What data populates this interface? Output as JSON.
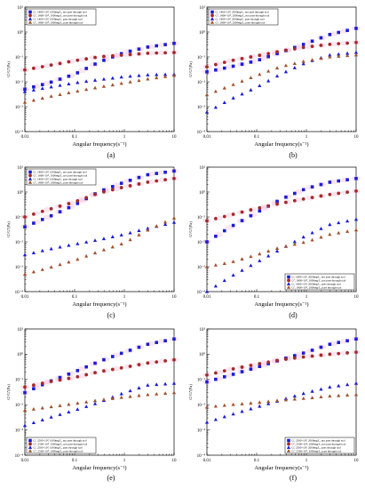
{
  "colors": {
    "blue_square": "#1c1cd6",
    "red_circle": "#a52a2a",
    "blue_triangle": "#1c1cd6",
    "red_triangle": "#a0522d",
    "band": "#f2b8d8"
  },
  "chart_data": [
    {
      "type": "scatter",
      "panel_label": "(a)",
      "xlabel": "Angular frequency(s⁻¹)",
      "ylabel": "G'/G''(Pa)",
      "xscale": "log",
      "yscale": "log",
      "xlim": [
        0.01,
        10
      ],
      "ylim": [
        0.0001,
        10
      ],
      "x_ticks": [
        "0.01",
        "0.1",
        "1",
        "10"
      ],
      "y_ticks": [
        "10⁻⁴",
        "10⁻³",
        "10⁻²",
        "10⁻¹",
        "10⁰",
        "10¹"
      ],
      "legend_position": "top-left",
      "series": [
        {
          "name": "G', 1800×10⁴, 1000mg/L, not pass through tool",
          "marker": "square",
          "x": [
            0.01,
            0.03,
            0.1,
            0.3,
            1,
            3,
            10
          ],
          "y": [
            0.005,
            0.009,
            0.02,
            0.06,
            0.15,
            0.25,
            0.35
          ]
        },
        {
          "name": "G'', 1800×10⁴, 1000mg/L, not pass through tool",
          "marker": "circle",
          "x": [
            0.01,
            0.03,
            0.1,
            0.3,
            1,
            3,
            10
          ],
          "y": [
            0.03,
            0.045,
            0.07,
            0.1,
            0.12,
            0.14,
            0.15
          ]
        },
        {
          "name": "G', 1800×10⁴, 1000mg/L, pass through tool",
          "marker": "triangle",
          "x": [
            0.01,
            0.03,
            0.1,
            0.3,
            1,
            3,
            10
          ],
          "y": [
            0.004,
            0.006,
            0.009,
            0.012,
            0.016,
            0.019,
            0.02
          ]
        },
        {
          "name": "G'', 1800×10⁴, 1000mg/L, pass through tool",
          "marker": "triangle-red",
          "x": [
            0.01,
            0.03,
            0.1,
            0.3,
            1,
            3,
            10
          ],
          "y": [
            0.0015,
            0.0025,
            0.004,
            0.006,
            0.009,
            0.013,
            0.018
          ]
        }
      ]
    },
    {
      "type": "scatter",
      "panel_label": "(b)",
      "xlabel": "Angular frequency(s⁻¹)",
      "ylabel": "G'/G''(Pa)",
      "xscale": "log",
      "yscale": "log",
      "xlim": [
        0.01,
        10
      ],
      "ylim": [
        0.0001,
        10
      ],
      "x_ticks": [
        "0.01",
        "0.1",
        "1",
        "10"
      ],
      "y_ticks": [
        "10⁻⁴",
        "10⁻³",
        "10⁻²",
        "10⁻¹",
        "10⁰",
        "10¹"
      ],
      "legend_position": "top-left",
      "series": [
        {
          "name": "G', 1800×10⁴, 2000mg/L, not pass through tool",
          "marker": "square",
          "x": [
            0.01,
            0.03,
            0.1,
            0.3,
            1,
            3,
            10
          ],
          "y": [
            0.025,
            0.04,
            0.07,
            0.15,
            0.35,
            0.8,
            1.4
          ]
        },
        {
          "name": "G'', 1800×10⁴, 2000mg/L, not pass through tool",
          "marker": "circle",
          "x": [
            0.01,
            0.03,
            0.1,
            0.3,
            1,
            3,
            10
          ],
          "y": [
            0.04,
            0.07,
            0.11,
            0.17,
            0.25,
            0.32,
            0.38
          ]
        },
        {
          "name": "G', 1800×10⁴, 2000mg/L, pass through tool",
          "marker": "triangle",
          "x": [
            0.01,
            0.03,
            0.1,
            0.3,
            1,
            3,
            10
          ],
          "y": [
            0.0006,
            0.002,
            0.006,
            0.02,
            0.06,
            0.12,
            0.15
          ]
        },
        {
          "name": "G'', 1800×10⁴, 2000mg/L, pass through tool",
          "marker": "triangle-red",
          "x": [
            0.01,
            0.03,
            0.1,
            0.3,
            1,
            3,
            10
          ],
          "y": [
            0.003,
            0.007,
            0.018,
            0.04,
            0.07,
            0.1,
            0.12
          ]
        }
      ]
    },
    {
      "type": "scatter",
      "panel_label": "(c)",
      "xlabel": "Angular frequency(s⁻¹)",
      "ylabel": "G'/G''(Pa)",
      "xscale": "log",
      "yscale": "log",
      "xlim": [
        0.01,
        10
      ],
      "ylim": [
        0.0001,
        10
      ],
      "x_ticks": [
        "0.01",
        "0.1",
        "1",
        "10"
      ],
      "y_ticks": [
        "10⁻⁴",
        "10⁻³",
        "10⁻²",
        "10⁻¹",
        "10⁰",
        "10¹"
      ],
      "legend_position": "top-left",
      "series": [
        {
          "name": "G', 1800×10⁴, 1000mg/L, not pass through tool",
          "marker": "square",
          "x": [
            0.01,
            0.03,
            0.1,
            0.3,
            1,
            3,
            10
          ],
          "y": [
            0.04,
            0.1,
            0.3,
            1,
            2.5,
            5,
            7
          ]
        },
        {
          "name": "G'', 1800×10⁴, 1000mg/L, not pass through tool",
          "marker": "circle",
          "x": [
            0.01,
            0.03,
            0.1,
            0.3,
            1,
            3,
            10
          ],
          "y": [
            0.1,
            0.2,
            0.4,
            0.9,
            1.6,
            2.5,
            3.5
          ]
        },
        {
          "name": "G', 1800×10⁴, 1000mg/L, pass through tool",
          "marker": "triangle",
          "x": [
            0.01,
            0.03,
            0.1,
            0.3,
            1,
            3,
            10
          ],
          "y": [
            0.003,
            0.005,
            0.008,
            0.012,
            0.02,
            0.035,
            0.06
          ]
        },
        {
          "name": "G'', 1800×10⁴, 1000mg/L, pass through tool",
          "marker": "triangle-red",
          "x": [
            0.01,
            0.03,
            0.1,
            0.3,
            1,
            3,
            10
          ],
          "y": [
            0.0005,
            0.0009,
            0.0018,
            0.004,
            0.009,
            0.03,
            0.09
          ]
        }
      ]
    },
    {
      "type": "scatter",
      "panel_label": "(d)",
      "xlabel": "Angular frequency(s⁻¹)",
      "ylabel": "G'/G''(Pa)",
      "xscale": "log",
      "yscale": "log",
      "xlim": [
        0.01,
        10
      ],
      "ylim": [
        0.0001,
        10
      ],
      "x_ticks": [
        "0.01",
        "0.1",
        "1",
        "10"
      ],
      "y_ticks": [
        "10⁻⁴",
        "10⁻³",
        "10⁻²",
        "10⁻¹",
        "10⁰",
        "10¹"
      ],
      "legend_position": "bottom-right",
      "series": [
        {
          "name": "G', 1800×10⁴, 2000mg/L, not pass through tool",
          "marker": "square",
          "x": [
            0.01,
            0.03,
            0.1,
            0.3,
            1,
            3,
            10
          ],
          "y": [
            0.01,
            0.04,
            0.15,
            0.5,
            1.4,
            2.5,
            3.5
          ]
        },
        {
          "name": "G'', 1800×10⁴, 2000mg/L, not pass through tool",
          "marker": "circle",
          "x": [
            0.01,
            0.03,
            0.1,
            0.3,
            1,
            3,
            10
          ],
          "y": [
            0.07,
            0.12,
            0.22,
            0.35,
            0.55,
            0.8,
            1.1
          ]
        },
        {
          "name": "G', 1800×10⁴, 2000mg/L, pass through tool",
          "marker": "triangle",
          "x": [
            0.01,
            0.03,
            0.1,
            0.3,
            1,
            3,
            10
          ],
          "y": [
            0.0001,
            0.0004,
            0.0015,
            0.005,
            0.018,
            0.05,
            0.08
          ]
        },
        {
          "name": "G'', 1800×10⁴, 2000mg/L, pass through tool",
          "marker": "triangle-red",
          "x": [
            0.01,
            0.03,
            0.1,
            0.3,
            1,
            3,
            10
          ],
          "y": [
            0.001,
            0.0015,
            0.003,
            0.006,
            0.01,
            0.02,
            0.03
          ]
        }
      ]
    },
    {
      "type": "scatter",
      "panel_label": "(e)",
      "xlabel": "Angular frequency(s⁻¹)",
      "ylabel": "G'/G''(Pa)",
      "xscale": "log",
      "yscale": "log",
      "xlim": [
        0.01,
        10
      ],
      "ylim": [
        0.0001,
        10
      ],
      "x_ticks": [
        "0.01",
        "0.1",
        "1",
        "10"
      ],
      "y_ticks": [
        "10⁻⁴",
        "10⁻³",
        "10⁻²",
        "10⁻¹",
        "10⁰",
        "10¹"
      ],
      "legend_position": "bottom-left",
      "series": [
        {
          "name": "G', 2500×10⁴, 1000mg/L, not pass through tool",
          "marker": "square",
          "x": [
            0.01,
            0.03,
            0.1,
            0.3,
            1,
            3,
            10
          ],
          "y": [
            0.03,
            0.08,
            0.2,
            0.5,
            1.2,
            2.5,
            4
          ]
        },
        {
          "name": "G'', 2500×10⁴, 1000mg/L, not pass through tool",
          "marker": "circle",
          "x": [
            0.01,
            0.03,
            0.1,
            0.3,
            1,
            3,
            10
          ],
          "y": [
            0.05,
            0.08,
            0.12,
            0.2,
            0.3,
            0.45,
            0.6
          ]
        },
        {
          "name": "G', 2500×10⁴, 1000mg/L, pass through tool",
          "marker": "triangle",
          "x": [
            0.01,
            0.03,
            0.1,
            0.3,
            1,
            3,
            10
          ],
          "y": [
            0.0015,
            0.003,
            0.006,
            0.012,
            0.03,
            0.06,
            0.07
          ]
        },
        {
          "name": "G'', 2500×10⁴, 1000mg/L, pass through tool",
          "marker": "triangle-red",
          "x": [
            0.01,
            0.03,
            0.1,
            0.3,
            1,
            3,
            10
          ],
          "y": [
            0.006,
            0.008,
            0.011,
            0.015,
            0.02,
            0.025,
            0.03
          ]
        }
      ]
    },
    {
      "type": "scatter",
      "panel_label": "(f)",
      "xlabel": "Angular frequency(s⁻¹)",
      "ylabel": "G'/G''(Pa)",
      "xscale": "log",
      "yscale": "log",
      "xlim": [
        0.01,
        10
      ],
      "ylim": [
        0.0001,
        10
      ],
      "x_ticks": [
        "0.01",
        "0.1",
        "1",
        "10"
      ],
      "y_ticks": [
        "10⁻⁴",
        "10⁻³",
        "10⁻²",
        "10⁻¹",
        "10⁰",
        "10¹"
      ],
      "legend_position": "bottom-right",
      "series": [
        {
          "name": "G', 2500×10⁴, 2000mg/L, not pass through tool",
          "marker": "square",
          "x": [
            0.01,
            0.03,
            0.1,
            0.3,
            1,
            3,
            10
          ],
          "y": [
            0.08,
            0.15,
            0.3,
            0.6,
            1.2,
            2.5,
            4
          ]
        },
        {
          "name": "G'', 2500×10⁴, 2000mg/L, not pass through tool",
          "marker": "circle",
          "x": [
            0.01,
            0.03,
            0.1,
            0.3,
            1,
            3,
            10
          ],
          "y": [
            0.15,
            0.25,
            0.4,
            0.6,
            0.8,
            1.0,
            1.2
          ]
        },
        {
          "name": "G', 2500×10⁴, 2000mg/L, pass through tool",
          "marker": "triangle",
          "x": [
            0.01,
            0.03,
            0.1,
            0.3,
            1,
            3,
            10
          ],
          "y": [
            0.002,
            0.004,
            0.008,
            0.015,
            0.03,
            0.05,
            0.07
          ]
        },
        {
          "name": "G'', 2500×10⁴, 2000mg/L, pass through tool",
          "marker": "triangle-red",
          "x": [
            0.01,
            0.03,
            0.1,
            0.3,
            1,
            3,
            10
          ],
          "y": [
            0.008,
            0.01,
            0.012,
            0.015,
            0.018,
            0.022,
            0.025
          ]
        }
      ]
    }
  ]
}
